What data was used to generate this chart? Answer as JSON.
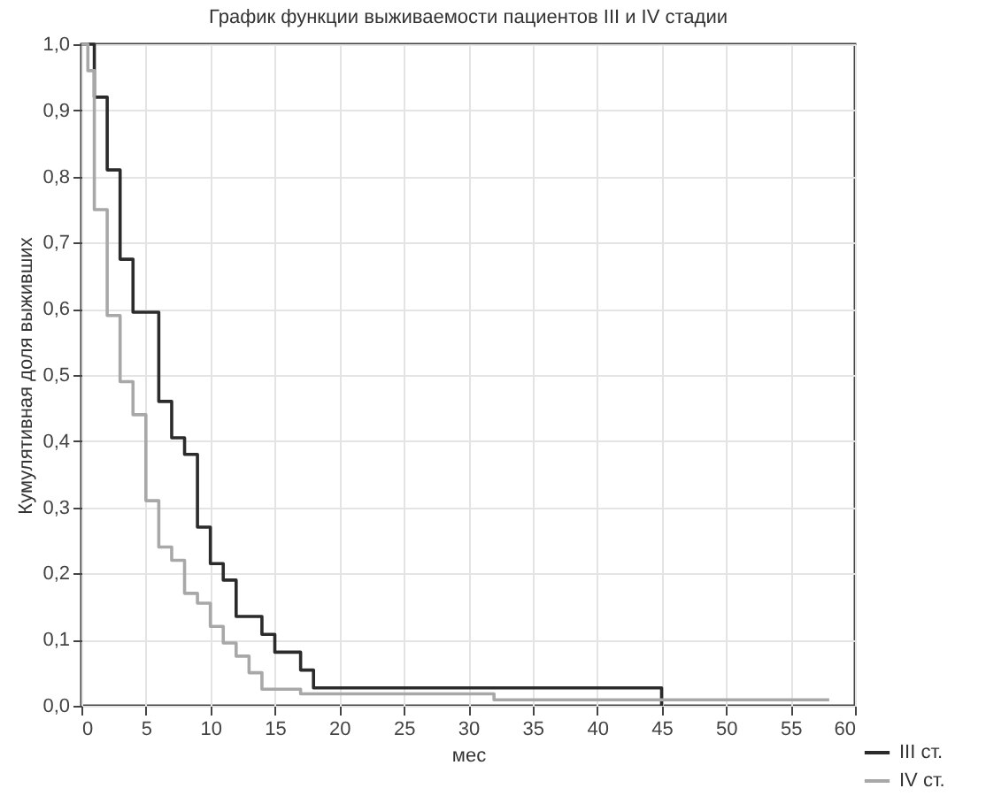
{
  "chart_data": {
    "type": "step",
    "title": "График функции выживаемости пациентов III и IV стадии",
    "xlabel": "мес",
    "ylabel": "Кумулятивная доля выживших",
    "series": [
      {
        "name": "III ст.",
        "color": "#2b2b2b",
        "x": [
          0,
          1,
          2,
          3,
          4,
          6,
          7,
          8,
          9,
          10,
          11,
          12,
          14,
          15,
          17,
          18,
          45
        ],
        "values": [
          1.0,
          0.92,
          0.81,
          0.675,
          0.595,
          0.46,
          0.405,
          0.38,
          0.27,
          0.215,
          0.19,
          0.135,
          0.108,
          0.081,
          0.054,
          0.027,
          0.0
        ]
      },
      {
        "name": "IV ст.",
        "color": "#a8a8a8",
        "x": [
          0,
          0.5,
          1,
          2,
          3,
          4,
          5,
          6,
          7,
          8,
          9,
          10,
          11,
          12,
          13,
          14,
          17,
          32,
          58
        ],
        "values": [
          1.0,
          0.96,
          0.75,
          0.59,
          0.49,
          0.44,
          0.31,
          0.24,
          0.22,
          0.17,
          0.155,
          0.12,
          0.095,
          0.075,
          0.05,
          0.025,
          0.018,
          0.009,
          0.009
        ]
      }
    ],
    "xlim": [
      0,
      60
    ],
    "xticks": [
      0,
      5,
      10,
      15,
      20,
      25,
      30,
      35,
      40,
      45,
      50,
      55,
      60
    ],
    "ylim": [
      0,
      1
    ],
    "yticks": [
      {
        "value": 0,
        "label": "0,0"
      },
      {
        "value": 0.1,
        "label": "0,1"
      },
      {
        "value": 0.2,
        "label": "0,2"
      },
      {
        "value": 0.3,
        "label": "0,3"
      },
      {
        "value": 0.4,
        "label": "0,4"
      },
      {
        "value": 0.5,
        "label": "0,5"
      },
      {
        "value": 0.6,
        "label": "0,6"
      },
      {
        "value": 0.7,
        "label": "0,7"
      },
      {
        "value": 0.8,
        "label": "0,8"
      },
      {
        "value": 0.9,
        "label": "0,9"
      },
      {
        "value": 1,
        "label": "1,0"
      }
    ],
    "grid": true,
    "legend": "bottom right",
    "line_style": "solid"
  }
}
